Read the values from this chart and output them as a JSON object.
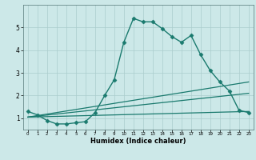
{
  "title": "",
  "xlabel": "Humidex (Indice chaleur)",
  "ylabel": "",
  "background_color": "#cce8e8",
  "grid_color": "#aacccc",
  "line_color": "#1a7a6e",
  "xlim": [
    -0.5,
    23.5
  ],
  "ylim": [
    0.5,
    6.0
  ],
  "yticks": [
    1,
    2,
    3,
    4,
    5
  ],
  "xticks": [
    0,
    1,
    2,
    3,
    4,
    5,
    6,
    7,
    8,
    9,
    10,
    11,
    12,
    13,
    14,
    15,
    16,
    17,
    18,
    19,
    20,
    21,
    22,
    23
  ],
  "series": [
    {
      "x": [
        0,
        1,
        2,
        3,
        4,
        5,
        6,
        7,
        8,
        9,
        10,
        11,
        12,
        13,
        14,
        15,
        16,
        17,
        18,
        19,
        20,
        21,
        22,
        23
      ],
      "y": [
        1.3,
        1.15,
        0.9,
        0.75,
        0.75,
        0.8,
        0.85,
        1.25,
        2.0,
        2.7,
        4.35,
        5.4,
        5.25,
        5.25,
        4.95,
        4.6,
        4.35,
        4.65,
        3.8,
        3.1,
        2.6,
        2.2,
        1.35,
        1.25
      ],
      "marker": "D",
      "markersize": 2.5,
      "linewidth": 1.0,
      "linestyle": "-"
    },
    {
      "x": [
        0,
        23
      ],
      "y": [
        1.05,
        2.6
      ],
      "marker": null,
      "markersize": 0,
      "linewidth": 0.9,
      "linestyle": "-"
    },
    {
      "x": [
        0,
        23
      ],
      "y": [
        1.05,
        2.1
      ],
      "marker": null,
      "markersize": 0,
      "linewidth": 0.9,
      "linestyle": "-"
    },
    {
      "x": [
        0,
        23
      ],
      "y": [
        1.05,
        1.3
      ],
      "marker": null,
      "markersize": 0,
      "linewidth": 0.9,
      "linestyle": "-"
    }
  ]
}
